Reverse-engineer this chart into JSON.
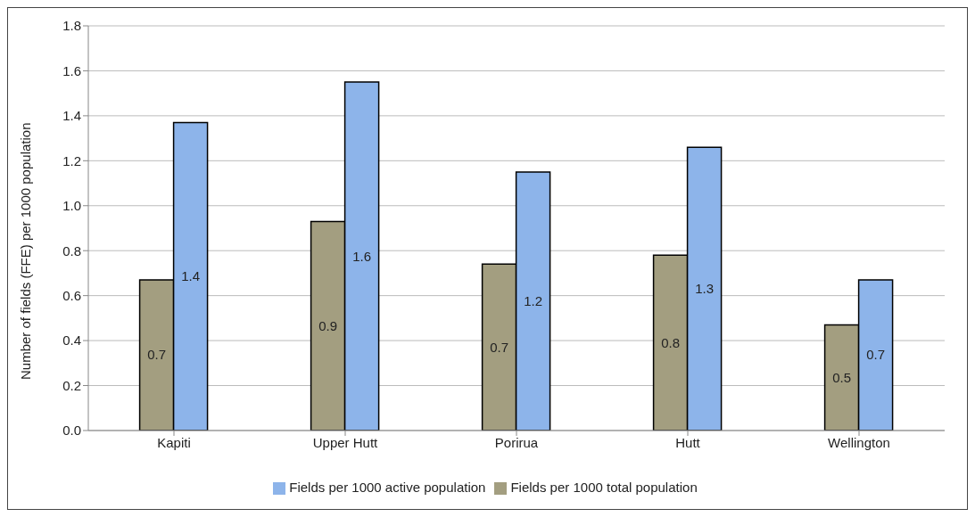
{
  "chart_data": {
    "type": "bar",
    "ylabel": "Number of fields (FFE) per 1000 population",
    "categories": [
      "Kapiti",
      "Upper Hutt",
      "Porirua",
      "Hutt",
      "Wellington"
    ],
    "series": [
      {
        "name": "Fields per 1000 total population",
        "color": "#a39e80",
        "values": [
          0.67,
          0.93,
          0.74,
          0.78,
          0.47
        ],
        "value_labels": [
          "0.7",
          "0.9",
          "0.7",
          "0.8",
          "0.5"
        ]
      },
      {
        "name": "Fields per 1000 active population",
        "color": "#8db4ea",
        "values": [
          1.37,
          1.55,
          1.15,
          1.26,
          0.67
        ],
        "value_labels": [
          "1.4",
          "1.6",
          "1.2",
          "1.3",
          "0.7"
        ]
      }
    ],
    "ylim": [
      0,
      1.8
    ],
    "yticks": [
      {
        "value": 0,
        "label": "0.0"
      },
      0.2,
      0.4,
      0.6,
      0.8,
      {
        "value": 1,
        "label": "1.0"
      },
      1.2,
      1.4,
      1.6,
      1.8
    ],
    "grid": "y",
    "legend": "bottom"
  }
}
